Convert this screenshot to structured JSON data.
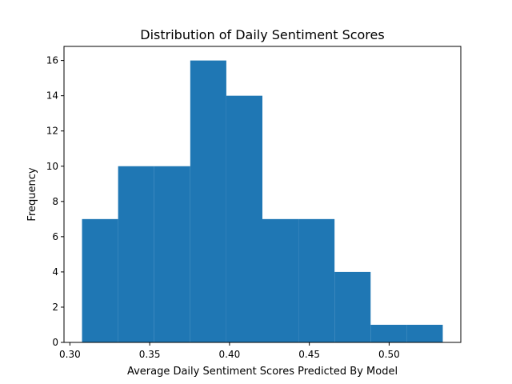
{
  "chart_data": {
    "type": "bar",
    "title": "Distribution of Daily Sentiment Scores",
    "xlabel": "Average Daily Sentiment Scores Predicted By Model",
    "ylabel": "Frequency",
    "bin_edges": [
      0.3076,
      0.3302,
      0.3528,
      0.3754,
      0.398,
      0.4206,
      0.4432,
      0.4658,
      0.4884,
      0.511,
      0.5336
    ],
    "values": [
      7,
      10,
      10,
      16,
      14,
      7,
      7,
      4,
      1,
      1
    ],
    "xlim": [
      0.2963,
      0.5449
    ],
    "ylim": [
      0,
      16.8
    ],
    "xticks": [
      0.3,
      0.35,
      0.4,
      0.45,
      0.5
    ],
    "xtick_labels": [
      "0.30",
      "0.35",
      "0.40",
      "0.45",
      "0.50"
    ],
    "yticks": [
      0,
      2,
      4,
      6,
      8,
      10,
      12,
      14,
      16
    ],
    "ytick_labels": [
      "0",
      "2",
      "4",
      "6",
      "8",
      "10",
      "12",
      "14",
      "16"
    ],
    "bar_color": "#1f77b4",
    "grid": false
  }
}
